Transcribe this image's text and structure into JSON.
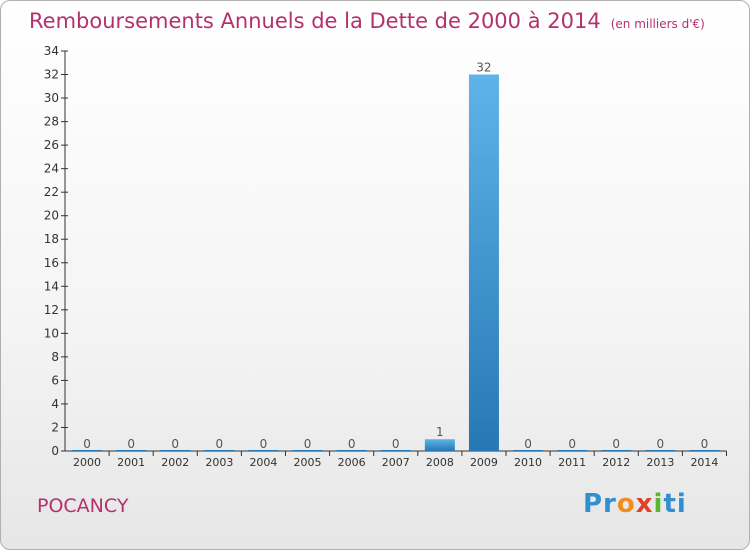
{
  "header": {
    "title": "Remboursements Annuels de la Dette de 2000 à 2014",
    "subtitle": "(en milliers d'€)"
  },
  "footer": {
    "place": "POCANCY",
    "brand": "Proxiti"
  },
  "colors": {
    "title": "#b5306e",
    "bar_top": "#5eb4ea",
    "bar_bottom": "#2678b4",
    "axis": "#333333"
  },
  "chart_data": {
    "type": "bar",
    "title": "Remboursements Annuels de la Dette de 2000 à 2014",
    "subtitle": "(en milliers d'€)",
    "categories": [
      "2000",
      "2001",
      "2002",
      "2003",
      "2004",
      "2005",
      "2006",
      "2007",
      "2008",
      "2009",
      "2010",
      "2011",
      "2012",
      "2013",
      "2014"
    ],
    "values": [
      0,
      0,
      0,
      0,
      0,
      0,
      0,
      0,
      1,
      32,
      0,
      0,
      0,
      0,
      0
    ],
    "ylim": [
      0,
      34
    ],
    "yticks": [
      0,
      2,
      4,
      6,
      8,
      10,
      12,
      14,
      16,
      18,
      20,
      22,
      24,
      26,
      28,
      30,
      32,
      34
    ],
    "grid": false,
    "legend": "none"
  }
}
